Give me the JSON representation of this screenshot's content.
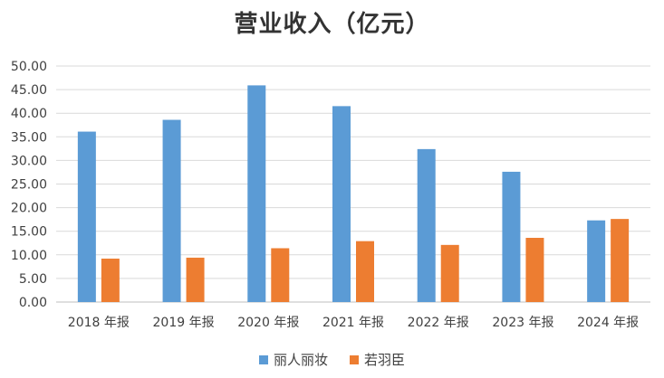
{
  "chart_data": {
    "type": "bar",
    "title": "营业收入（亿元）",
    "xlabel": "",
    "ylabel": "",
    "ylim": [
      0,
      50
    ],
    "yticks": [
      "0.00",
      "5.00",
      "10.00",
      "15.00",
      "20.00",
      "25.00",
      "30.00",
      "35.00",
      "40.00",
      "45.00",
      "50.00"
    ],
    "categories": [
      "2018 年报",
      "2019 年报",
      "2020 年报",
      "2021 年报",
      "2022 年报",
      "2023 年报",
      "2024 年报"
    ],
    "series": [
      {
        "name": "丽人丽妆",
        "color": "#5B9BD5",
        "values": [
          36.1,
          38.6,
          45.9,
          41.5,
          32.4,
          27.6,
          17.3
        ]
      },
      {
        "name": "若羽臣",
        "color": "#ED7D31",
        "values": [
          9.2,
          9.4,
          11.4,
          12.9,
          12.1,
          13.6,
          17.6
        ]
      }
    ],
    "grid": true,
    "legend_position": "bottom"
  }
}
